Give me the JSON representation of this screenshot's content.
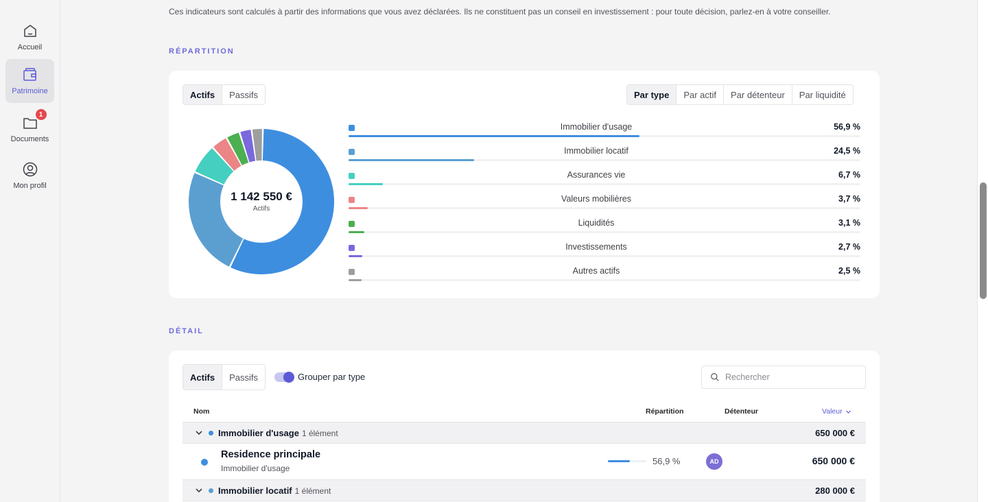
{
  "sidebar": {
    "items": [
      {
        "label": "Accueil",
        "icon": "home-icon"
      },
      {
        "label": "Patrimoine",
        "icon": "wallet-icon"
      },
      {
        "label": "Documents",
        "icon": "folder-icon",
        "badge": "1"
      },
      {
        "label": "Mon profil",
        "icon": "user-circle-icon"
      }
    ]
  },
  "disclaimer": "Ces indicateurs sont calculés à partir des informations que vous avez déclarées. Ils ne constituent pas un conseil en investissement : pour toute décision, parlez-en à votre conseiller.",
  "repartition": {
    "title": "RÉPARTITION",
    "tabs": [
      "Actifs",
      "Passifs"
    ],
    "views": [
      "Par type",
      "Par actif",
      "Par détenteur",
      "Par liquidité"
    ],
    "total": "1 142 550 €",
    "total_label": "Actifs",
    "categories": [
      {
        "name": "Immobilier d'usage",
        "pct_label": "56,9 %",
        "value": 56.9,
        "color": "#3e8ee0"
      },
      {
        "name": "Immobilier locatif",
        "pct_label": "24,5 %",
        "value": 24.5,
        "color": "#5b9fd1"
      },
      {
        "name": "Assurances vie",
        "pct_label": "6,7 %",
        "value": 6.7,
        "color": "#45cfc0"
      },
      {
        "name": "Valeurs mobilières",
        "pct_label": "3,7 %",
        "value": 3.7,
        "color": "#ec8585"
      },
      {
        "name": "Liquidités",
        "pct_label": "3,1 %",
        "value": 3.1,
        "color": "#4caf50"
      },
      {
        "name": "Investissements",
        "pct_label": "2,7 %",
        "value": 2.7,
        "color": "#7b68de"
      },
      {
        "name": "Autres actifs",
        "pct_label": "2,5 %",
        "value": 2.5,
        "color": "#9e9e9e"
      }
    ]
  },
  "detail": {
    "title": "DÉTAIL",
    "tabs": [
      "Actifs",
      "Passifs"
    ],
    "group_toggle_label": "Grouper par type",
    "search_placeholder": "Rechercher",
    "columns": {
      "name": "Nom",
      "repartition": "Répartition",
      "holder": "Détenteur",
      "value": "Valeur"
    },
    "groups": [
      {
        "name": "Immobilier d'usage",
        "count": "1 élément",
        "value": "650 000 €"
      },
      {
        "name": "Immobilier locatif",
        "count": "1 élément",
        "value": "280 000 €"
      }
    ],
    "items": [
      {
        "name": "Residence principale",
        "type": "Immobilier d'usage",
        "pct_label": "56,9 %",
        "pct": 56.9,
        "holder": "AD",
        "value": "650 000 €"
      }
    ]
  }
}
